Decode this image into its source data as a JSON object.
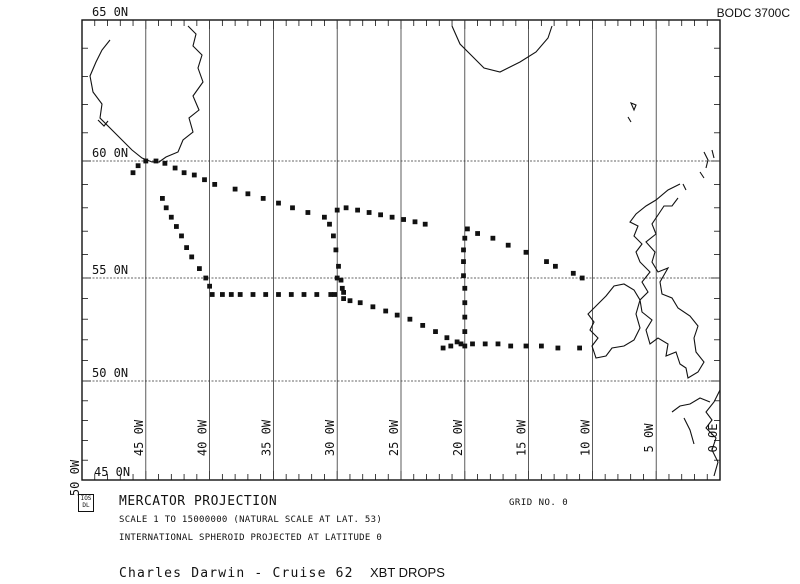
{
  "header": {
    "reference": "BODC 3700C"
  },
  "map": {
    "lat_labels": [
      {
        "lat": 65,
        "text": "65  0N"
      },
      {
        "lat": 60,
        "text": "60  0N"
      },
      {
        "lat": 55,
        "text": "55  0N"
      },
      {
        "lat": 50,
        "text": "50  0N"
      },
      {
        "lat": 45,
        "text": "45  0N"
      }
    ],
    "lon_labels": [
      {
        "lon": -50,
        "text": "50  0W"
      },
      {
        "lon": -45,
        "text": "45  0W"
      },
      {
        "lon": -40,
        "text": "40  0W"
      },
      {
        "lon": -35,
        "text": "35  0W"
      },
      {
        "lon": -30,
        "text": "30  0W"
      },
      {
        "lon": -25,
        "text": "25  0W"
      },
      {
        "lon": -20,
        "text": "20  0W"
      },
      {
        "lon": -15,
        "text": "15  0W"
      },
      {
        "lon": -10,
        "text": "10  0W"
      },
      {
        "lon": -5,
        "text": "5  0W"
      },
      {
        "lon": 0,
        "text": "0  0E"
      }
    ],
    "tracks": [
      [
        [
          -46.0,
          59.5
        ],
        [
          -45.6,
          59.8
        ],
        [
          -45.0,
          60.0
        ],
        [
          -44.2,
          60.0
        ],
        [
          -43.5,
          59.9
        ],
        [
          -42.7,
          59.7
        ],
        [
          -42.0,
          59.5
        ],
        [
          -41.2,
          59.4
        ],
        [
          -40.4,
          59.2
        ],
        [
          -39.6,
          59.0
        ],
        [
          -38.0,
          58.8
        ],
        [
          -37.0,
          58.6
        ],
        [
          -35.8,
          58.4
        ],
        [
          -34.6,
          58.2
        ],
        [
          -33.5,
          58.0
        ],
        [
          -32.3,
          57.8
        ],
        [
          -31.0,
          57.6
        ],
        [
          -30.6,
          57.3
        ],
        [
          -30.3,
          56.8
        ],
        [
          -30.1,
          56.2
        ],
        [
          -29.9,
          55.5
        ],
        [
          -29.7,
          54.9
        ],
        [
          -29.6,
          54.5
        ],
        [
          -29.5,
          54.0
        ]
      ],
      [
        [
          -30.0,
          57.9
        ],
        [
          -29.3,
          58.0
        ],
        [
          -28.4,
          57.9
        ],
        [
          -27.5,
          57.8
        ],
        [
          -26.6,
          57.7
        ],
        [
          -25.7,
          57.6
        ],
        [
          -24.8,
          57.5
        ],
        [
          -23.9,
          57.4
        ],
        [
          -23.1,
          57.3
        ]
      ],
      [
        [
          -43.7,
          58.4
        ],
        [
          -43.4,
          58.0
        ],
        [
          -43.0,
          57.6
        ],
        [
          -42.6,
          57.2
        ],
        [
          -42.2,
          56.8
        ],
        [
          -41.8,
          56.3
        ],
        [
          -41.4,
          55.9
        ],
        [
          -40.8,
          55.4
        ],
        [
          -40.3,
          55.0
        ],
        [
          -40.0,
          54.6
        ],
        [
          -39.8,
          54.2
        ],
        [
          -39.0,
          54.2
        ],
        [
          -38.3,
          54.2
        ],
        [
          -37.6,
          54.2
        ],
        [
          -36.6,
          54.2
        ],
        [
          -35.6,
          54.2
        ],
        [
          -34.6,
          54.2
        ],
        [
          -33.6,
          54.2
        ],
        [
          -32.6,
          54.2
        ],
        [
          -31.6,
          54.2
        ],
        [
          -30.5,
          54.2
        ],
        [
          -30.2,
          54.2
        ]
      ],
      [
        [
          -30.0,
          55.0
        ],
        [
          -29.5,
          54.3
        ],
        [
          -29.0,
          53.9
        ],
        [
          -28.2,
          53.8
        ],
        [
          -27.2,
          53.6
        ],
        [
          -26.2,
          53.4
        ],
        [
          -25.3,
          53.2
        ],
        [
          -24.3,
          53.0
        ],
        [
          -23.3,
          52.7
        ],
        [
          -22.3,
          52.4
        ],
        [
          -21.4,
          52.1
        ],
        [
          -20.6,
          51.9
        ],
        [
          -21.1,
          51.7
        ],
        [
          -21.7,
          51.6
        ]
      ],
      [
        [
          -20.0,
          51.7
        ],
        [
          -20.0,
          52.4
        ],
        [
          -20.0,
          53.1
        ],
        [
          -20.0,
          53.8
        ],
        [
          -20.0,
          54.5
        ],
        [
          -20.1,
          55.1
        ],
        [
          -20.1,
          55.7
        ],
        [
          -20.1,
          56.2
        ],
        [
          -20.0,
          56.7
        ],
        [
          -19.8,
          57.1
        ],
        [
          -19.0,
          56.9
        ],
        [
          -17.8,
          56.7
        ],
        [
          -16.6,
          56.4
        ],
        [
          -15.2,
          56.1
        ],
        [
          -13.6,
          55.7
        ],
        [
          -12.9,
          55.5
        ],
        [
          -11.5,
          55.2
        ],
        [
          -10.8,
          55.0
        ]
      ],
      [
        [
          -20.3,
          51.8
        ],
        [
          -19.4,
          51.8
        ],
        [
          -18.4,
          51.8
        ],
        [
          -17.4,
          51.8
        ],
        [
          -16.4,
          51.7
        ],
        [
          -15.2,
          51.7
        ],
        [
          -14.0,
          51.7
        ],
        [
          -12.7,
          51.6
        ],
        [
          -11.0,
          51.6
        ]
      ]
    ]
  }
}
